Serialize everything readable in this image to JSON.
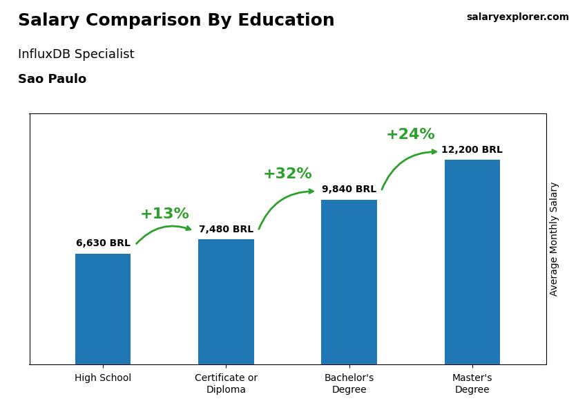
{
  "chart_data": {
    "type": "bar",
    "title": "Salary Comparison By Education",
    "subtitle": [
      "InfluxDB Specialist",
      "Sao Paulo"
    ],
    "source": "salaryexplorer.com",
    "y_label": "Average Monthly Salary",
    "categories": [
      "High School",
      "Certificate or\nDiploma",
      "Bachelor's\nDegree",
      "Master's\nDegree"
    ],
    "values": [
      6630,
      7480,
      9840,
      12200
    ],
    "value_labels": [
      "6,630 BRL",
      "7,480 BRL",
      "9,840 BRL",
      "12,200 BRL"
    ],
    "data_labels": true,
    "annotations": [
      "+13%",
      "+32%",
      "+24%"
    ],
    "ylim": [
      0,
      15000
    ],
    "yticks": [],
    "tick_labels": "x",
    "grid": false
  }
}
